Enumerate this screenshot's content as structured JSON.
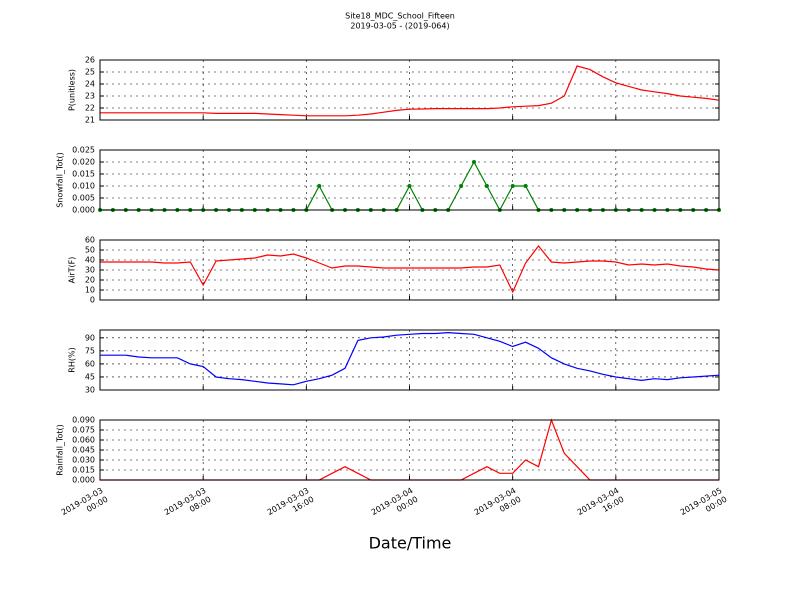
{
  "title": "Site18_MDC_School_Fifteen",
  "subtitle": "2019-03-05 - (2019-064)",
  "xlabel": "Date/Time",
  "chart_data": [
    {
      "type": "line",
      "ylabel": "P(unitless)",
      "ylim": [
        21,
        26
      ],
      "yticks": [
        21,
        22,
        23,
        24,
        25,
        26
      ],
      "grid": true,
      "marker": false,
      "xlim": [
        "2019-03-03 00:00",
        "2019-03-05 00:00"
      ],
      "xticks": [
        "2019-03-03 00:00",
        "2019-03-03 08:00",
        "2019-03-03 16:00",
        "2019-03-04 00:00",
        "2019-03-04 08:00",
        "2019-03-04 16:00",
        "2019-03-05 00:00"
      ],
      "x": [
        "2019-03-03 00:00",
        "2019-03-03 01:00",
        "2019-03-03 02:00",
        "2019-03-03 03:00",
        "2019-03-03 04:00",
        "2019-03-03 05:00",
        "2019-03-03 06:00",
        "2019-03-03 07:00",
        "2019-03-03 08:00",
        "2019-03-03 09:00",
        "2019-03-03 10:00",
        "2019-03-03 11:00",
        "2019-03-03 12:00",
        "2019-03-03 13:00",
        "2019-03-03 14:00",
        "2019-03-03 15:00",
        "2019-03-03 16:00",
        "2019-03-03 17:00",
        "2019-03-03 18:00",
        "2019-03-03 19:00",
        "2019-03-03 20:00",
        "2019-03-03 21:00",
        "2019-03-03 22:00",
        "2019-03-03 23:00",
        "2019-03-04 00:00",
        "2019-03-04 01:00",
        "2019-03-04 02:00",
        "2019-03-04 03:00",
        "2019-03-04 04:00",
        "2019-03-04 05:00",
        "2019-03-04 06:00",
        "2019-03-04 07:00",
        "2019-03-04 08:00",
        "2019-03-04 09:00",
        "2019-03-04 10:00",
        "2019-03-04 11:00",
        "2019-03-04 12:00",
        "2019-03-04 13:00",
        "2019-03-04 14:00",
        "2019-03-04 15:00",
        "2019-03-04 16:00",
        "2019-03-04 17:00",
        "2019-03-04 18:00",
        "2019-03-04 19:00",
        "2019-03-04 20:00",
        "2019-03-04 21:00",
        "2019-03-04 22:00",
        "2019-03-04 23:00",
        "2019-03-05 00:00"
      ],
      "series": [
        {
          "color": "#ff0000",
          "values": [
            21.6,
            21.6,
            21.6,
            21.6,
            21.6,
            21.6,
            21.6,
            21.6,
            21.6,
            21.55,
            21.55,
            21.55,
            21.55,
            21.5,
            21.45,
            21.4,
            21.35,
            21.35,
            21.35,
            21.35,
            21.4,
            21.5,
            21.65,
            21.8,
            21.9,
            21.92,
            21.95,
            21.95,
            21.95,
            21.95,
            21.95,
            22.0,
            22.1,
            22.15,
            22.2,
            22.4,
            23.0,
            25.5,
            25.2,
            24.6,
            24.1,
            23.8,
            23.5,
            23.35,
            23.2,
            23.0,
            22.9,
            22.8,
            22.65
          ]
        }
      ]
    },
    {
      "type": "line",
      "ylabel": "Snowfall_Tot()",
      "ylim": [
        0,
        0.025
      ],
      "yticks": [
        {
          "value": 0,
          "label": "0.000"
        },
        {
          "value": 0.005,
          "label": "0.005"
        },
        {
          "value": 0.01,
          "label": "0.010"
        },
        {
          "value": 0.015,
          "label": "0.015"
        },
        {
          "value": 0.02,
          "label": "0.020"
        },
        {
          "value": 0.025,
          "label": "0.025"
        }
      ],
      "grid": true,
      "marker": true,
      "xlim": [
        "2019-03-03 00:00",
        "2019-03-05 00:00"
      ],
      "xticks": [
        "2019-03-03 00:00",
        "2019-03-03 08:00",
        "2019-03-03 16:00",
        "2019-03-04 00:00",
        "2019-03-04 08:00",
        "2019-03-04 16:00",
        "2019-03-05 00:00"
      ],
      "x": [
        "2019-03-03 00:00",
        "2019-03-03 01:00",
        "2019-03-03 02:00",
        "2019-03-03 03:00",
        "2019-03-03 04:00",
        "2019-03-03 05:00",
        "2019-03-03 06:00",
        "2019-03-03 07:00",
        "2019-03-03 08:00",
        "2019-03-03 09:00",
        "2019-03-03 10:00",
        "2019-03-03 11:00",
        "2019-03-03 12:00",
        "2019-03-03 13:00",
        "2019-03-03 14:00",
        "2019-03-03 15:00",
        "2019-03-03 16:00",
        "2019-03-03 17:00",
        "2019-03-03 18:00",
        "2019-03-03 19:00",
        "2019-03-03 20:00",
        "2019-03-03 21:00",
        "2019-03-03 22:00",
        "2019-03-03 23:00",
        "2019-03-04 00:00",
        "2019-03-04 01:00",
        "2019-03-04 02:00",
        "2019-03-04 03:00",
        "2019-03-04 04:00",
        "2019-03-04 05:00",
        "2019-03-04 06:00",
        "2019-03-04 07:00",
        "2019-03-04 08:00",
        "2019-03-04 09:00",
        "2019-03-04 10:00",
        "2019-03-04 11:00",
        "2019-03-04 12:00",
        "2019-03-04 13:00",
        "2019-03-04 14:00",
        "2019-03-04 15:00",
        "2019-03-04 16:00",
        "2019-03-04 17:00",
        "2019-03-04 18:00",
        "2019-03-04 19:00",
        "2019-03-04 20:00",
        "2019-03-04 21:00",
        "2019-03-04 22:00",
        "2019-03-04 23:00",
        "2019-03-05 00:00"
      ],
      "series": [
        {
          "color": "#008000",
          "values": [
            0,
            0,
            0,
            0,
            0,
            0,
            0,
            0,
            0,
            0,
            0,
            0,
            0,
            0,
            0,
            0,
            0,
            0.01,
            0,
            0,
            0,
            0,
            0,
            0,
            0.01,
            0,
            0,
            0,
            0.01,
            0.02,
            0.01,
            0,
            0.01,
            0.01,
            0,
            0,
            0,
            0,
            0,
            0,
            0,
            0,
            0,
            0,
            0,
            0,
            0,
            0,
            0
          ]
        }
      ]
    },
    {
      "type": "line",
      "ylabel": "AirT(F)",
      "ylim": [
        0,
        60
      ],
      "yticks": [
        0,
        10,
        20,
        30,
        40,
        50,
        60
      ],
      "grid": true,
      "marker": false,
      "xlim": [
        "2019-03-03 00:00",
        "2019-03-05 00:00"
      ],
      "xticks": [
        "2019-03-03 00:00",
        "2019-03-03 08:00",
        "2019-03-03 16:00",
        "2019-03-04 00:00",
        "2019-03-04 08:00",
        "2019-03-04 16:00",
        "2019-03-05 00:00"
      ],
      "x": [
        "2019-03-03 00:00",
        "2019-03-03 01:00",
        "2019-03-03 02:00",
        "2019-03-03 03:00",
        "2019-03-03 04:00",
        "2019-03-03 05:00",
        "2019-03-03 06:00",
        "2019-03-03 07:00",
        "2019-03-03 08:00",
        "2019-03-03 09:00",
        "2019-03-03 10:00",
        "2019-03-03 11:00",
        "2019-03-03 12:00",
        "2019-03-03 13:00",
        "2019-03-03 14:00",
        "2019-03-03 15:00",
        "2019-03-03 16:00",
        "2019-03-03 17:00",
        "2019-03-03 18:00",
        "2019-03-03 19:00",
        "2019-03-03 20:00",
        "2019-03-03 21:00",
        "2019-03-03 22:00",
        "2019-03-03 23:00",
        "2019-03-04 00:00",
        "2019-03-04 01:00",
        "2019-03-04 02:00",
        "2019-03-04 03:00",
        "2019-03-04 04:00",
        "2019-03-04 05:00",
        "2019-03-04 06:00",
        "2019-03-04 07:00",
        "2019-03-04 08:00",
        "2019-03-04 09:00",
        "2019-03-04 10:00",
        "2019-03-04 11:00",
        "2019-03-04 12:00",
        "2019-03-04 13:00",
        "2019-03-04 14:00",
        "2019-03-04 15:00",
        "2019-03-04 16:00",
        "2019-03-04 17:00",
        "2019-03-04 18:00",
        "2019-03-04 19:00",
        "2019-03-04 20:00",
        "2019-03-04 21:00",
        "2019-03-04 22:00",
        "2019-03-04 23:00",
        "2019-03-05 00:00"
      ],
      "series": [
        {
          "color": "#ff0000",
          "values": [
            38,
            38,
            38,
            38,
            38,
            37,
            37,
            38,
            15,
            39,
            40,
            41,
            42,
            45,
            44,
            46,
            42,
            37,
            32,
            34,
            34,
            33,
            32,
            32,
            32,
            32,
            32,
            32,
            32,
            33,
            33,
            35,
            8,
            37,
            54,
            38,
            37,
            38,
            39,
            39,
            38,
            35,
            36,
            35,
            36,
            34,
            33,
            31,
            30
          ]
        }
      ]
    },
    {
      "type": "line",
      "ylabel": "RH(%)",
      "ylim": [
        30,
        99
      ],
      "yticks": [
        30,
        45,
        60,
        75,
        90
      ],
      "grid": true,
      "marker": false,
      "xlim": [
        "2019-03-03 00:00",
        "2019-03-05 00:00"
      ],
      "xticks": [
        "2019-03-03 00:00",
        "2019-03-03 08:00",
        "2019-03-03 16:00",
        "2019-03-04 00:00",
        "2019-03-04 08:00",
        "2019-03-04 16:00",
        "2019-03-05 00:00"
      ],
      "x": [
        "2019-03-03 00:00",
        "2019-03-03 01:00",
        "2019-03-03 02:00",
        "2019-03-03 03:00",
        "2019-03-03 04:00",
        "2019-03-03 05:00",
        "2019-03-03 06:00",
        "2019-03-03 07:00",
        "2019-03-03 08:00",
        "2019-03-03 09:00",
        "2019-03-03 10:00",
        "2019-03-03 11:00",
        "2019-03-03 12:00",
        "2019-03-03 13:00",
        "2019-03-03 14:00",
        "2019-03-03 15:00",
        "2019-03-03 16:00",
        "2019-03-03 17:00",
        "2019-03-03 18:00",
        "2019-03-03 19:00",
        "2019-03-03 20:00",
        "2019-03-03 21:00",
        "2019-03-03 22:00",
        "2019-03-03 23:00",
        "2019-03-04 00:00",
        "2019-03-04 01:00",
        "2019-03-04 02:00",
        "2019-03-04 03:00",
        "2019-03-04 04:00",
        "2019-03-04 05:00",
        "2019-03-04 06:00",
        "2019-03-04 07:00",
        "2019-03-04 08:00",
        "2019-03-04 09:00",
        "2019-03-04 10:00",
        "2019-03-04 11:00",
        "2019-03-04 12:00",
        "2019-03-04 13:00",
        "2019-03-04 14:00",
        "2019-03-04 15:00",
        "2019-03-04 16:00",
        "2019-03-04 17:00",
        "2019-03-04 18:00",
        "2019-03-04 19:00",
        "2019-03-04 20:00",
        "2019-03-04 21:00",
        "2019-03-04 22:00",
        "2019-03-04 23:00",
        "2019-03-05 00:00"
      ],
      "series": [
        {
          "color": "#0000ff",
          "values": [
            70,
            70,
            70,
            68,
            67,
            67,
            67,
            60,
            57,
            45,
            43,
            42,
            40,
            38,
            37,
            36,
            40,
            43,
            47,
            55,
            87,
            90,
            91,
            93,
            94,
            95,
            95,
            96,
            95,
            94,
            90,
            86,
            80,
            85,
            78,
            67,
            60,
            55,
            52,
            48,
            45,
            43,
            41,
            43,
            42,
            44,
            45,
            46,
            47
          ]
        }
      ]
    },
    {
      "type": "line",
      "ylabel": "Rainfall_Tot()",
      "ylim": [
        0,
        0.09
      ],
      "yticks": [
        {
          "value": 0,
          "label": "0.000"
        },
        {
          "value": 0.015,
          "label": "0.015"
        },
        {
          "value": 0.03,
          "label": "0.030"
        },
        {
          "value": 0.045,
          "label": "0.045"
        },
        {
          "value": 0.06,
          "label": "0.060"
        },
        {
          "value": 0.075,
          "label": "0.075"
        },
        {
          "value": 0.09,
          "label": "0.090"
        }
      ],
      "grid": true,
      "marker": false,
      "xlim": [
        "2019-03-03 00:00",
        "2019-03-05 00:00"
      ],
      "xticks": [
        "2019-03-03 00:00",
        "2019-03-03 08:00",
        "2019-03-03 16:00",
        "2019-03-04 00:00",
        "2019-03-04 08:00",
        "2019-03-04 16:00",
        "2019-03-05 00:00"
      ],
      "x": [
        "2019-03-03 00:00",
        "2019-03-03 01:00",
        "2019-03-03 02:00",
        "2019-03-03 03:00",
        "2019-03-03 04:00",
        "2019-03-03 05:00",
        "2019-03-03 06:00",
        "2019-03-03 07:00",
        "2019-03-03 08:00",
        "2019-03-03 09:00",
        "2019-03-03 10:00",
        "2019-03-03 11:00",
        "2019-03-03 12:00",
        "2019-03-03 13:00",
        "2019-03-03 14:00",
        "2019-03-03 15:00",
        "2019-03-03 16:00",
        "2019-03-03 17:00",
        "2019-03-03 18:00",
        "2019-03-03 19:00",
        "2019-03-03 20:00",
        "2019-03-03 21:00",
        "2019-03-03 22:00",
        "2019-03-03 23:00",
        "2019-03-04 00:00",
        "2019-03-04 01:00",
        "2019-03-04 02:00",
        "2019-03-04 03:00",
        "2019-03-04 04:00",
        "2019-03-04 05:00",
        "2019-03-04 06:00",
        "2019-03-04 07:00",
        "2019-03-04 08:00",
        "2019-03-04 09:00",
        "2019-03-04 10:00",
        "2019-03-04 11:00",
        "2019-03-04 12:00",
        "2019-03-04 13:00",
        "2019-03-04 14:00",
        "2019-03-04 15:00",
        "2019-03-04 16:00",
        "2019-03-04 17:00",
        "2019-03-04 18:00",
        "2019-03-04 19:00",
        "2019-03-04 20:00",
        "2019-03-04 21:00",
        "2019-03-04 22:00",
        "2019-03-04 23:00",
        "2019-03-05 00:00"
      ],
      "series": [
        {
          "color": "#ff0000",
          "values": [
            0,
            0,
            0,
            0,
            0,
            0,
            0,
            0,
            0,
            0,
            0,
            0,
            0,
            0,
            0,
            0,
            0,
            0,
            0.01,
            0.02,
            0.01,
            0,
            0,
            0,
            0,
            0,
            0,
            0,
            0,
            0.01,
            0.02,
            0.01,
            0.01,
            0.03,
            0.02,
            0.09,
            0.04,
            0.02,
            0,
            0,
            0,
            0,
            0,
            0,
            0,
            0,
            0,
            0,
            0
          ]
        }
      ]
    }
  ]
}
